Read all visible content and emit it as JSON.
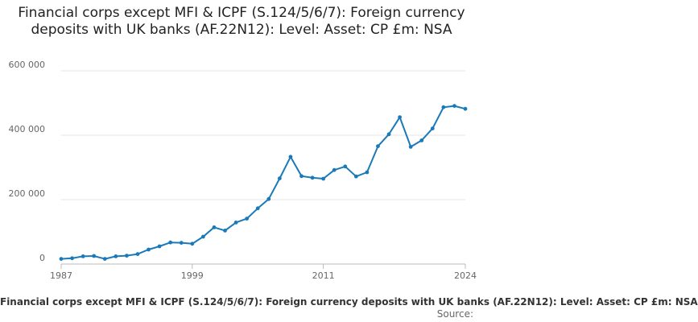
{
  "chart_data": {
    "type": "line",
    "title": "Financial corps except MFI & ICPF (S.124/5/6/7): Foreign currency deposits with UK banks (AF.22N12): Level: Asset: CP £m: NSA",
    "xlabel": "",
    "ylabel": "",
    "x_ticks": [
      "1987",
      "1999",
      "2011",
      "2024"
    ],
    "y_ticks": [
      "0",
      "200 000",
      "400 000",
      "600 000"
    ],
    "xlim": [
      1987,
      2024
    ],
    "ylim": [
      0,
      600000
    ],
    "grid": true,
    "legend": "none",
    "color": "#1a7ab8",
    "series": [
      {
        "x": [
          1987,
          1988,
          1989,
          1990,
          1991,
          1992,
          1993,
          1994,
          1995,
          1996,
          1997,
          1998,
          1999,
          2000,
          2001,
          2002,
          2003,
          2004,
          2005,
          2006,
          2007,
          2008,
          2009,
          2010,
          2011,
          2012,
          2013,
          2014,
          2015,
          2016,
          2017,
          2018,
          2019,
          2020,
          2021,
          2022,
          2023,
          2024
        ],
        "values": [
          16000,
          18000,
          24000,
          25000,
          16000,
          24000,
          26000,
          31000,
          45000,
          55000,
          67000,
          66000,
          63000,
          85000,
          114000,
          104000,
          129000,
          141000,
          173000,
          202000,
          266000,
          333000,
          273000,
          268000,
          265000,
          292000,
          303000,
          272000,
          285000,
          366000,
          403000,
          456000,
          364000,
          384000,
          421000,
          487000,
          491000,
          482000
        ]
      }
    ]
  },
  "footer": {
    "series_title": "Financial corps except MFI & ICPF (S.124/5/6/7): Foreign currency deposits with UK banks (AF.22N12): Level: Asset: CP £m: NSA",
    "source_label": "Source:"
  }
}
